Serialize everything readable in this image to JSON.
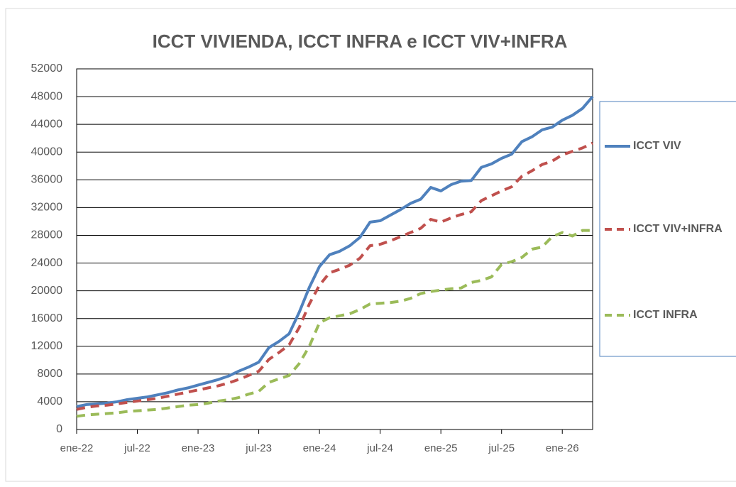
{
  "chart_data": {
    "type": "line",
    "title": "ICCT VIVIENDA, ICCT INFRA e ICCT VIV+INFRA",
    "categories": [
      "ene-22",
      null,
      null,
      null,
      null,
      null,
      "jul-22",
      null,
      null,
      null,
      null,
      null,
      "ene-23",
      null,
      null,
      null,
      null,
      null,
      "jul-23",
      null,
      null,
      null,
      null,
      null,
      "ene-24",
      null,
      null,
      null,
      null,
      null,
      "jul-24",
      null,
      null,
      null,
      null,
      null,
      "ene-25",
      null,
      null,
      null,
      null,
      null,
      "jul-25",
      null,
      null,
      null,
      null,
      null,
      "ene-26",
      null,
      null,
      null
    ],
    "series": [
      {
        "name": "ICCT VIV",
        "color": "#4f81bd",
        "dashed": false,
        "values": [
          3300,
          3600,
          3700,
          3800,
          4000,
          4300,
          4500,
          4700,
          5000,
          5300,
          5700,
          6000,
          6400,
          6800,
          7200,
          7700,
          8400,
          9000,
          9700,
          11800,
          12700,
          13800,
          16900,
          20500,
          23500,
          25200,
          25700,
          26500,
          27700,
          29900,
          30100,
          30900,
          31700,
          32600,
          33200,
          34900,
          34400,
          35300,
          35800,
          35900,
          37800,
          38300,
          39100,
          39700,
          41500,
          42200,
          43200,
          43600,
          44600,
          45300,
          46300,
          48000
        ]
      },
      {
        "name": "ICCT VIV+INFRA",
        "color": "#c0504d",
        "dashed": true,
        "values": [
          2900,
          3200,
          3400,
          3500,
          3700,
          3900,
          4100,
          4300,
          4500,
          4800,
          5100,
          5400,
          5700,
          6000,
          6300,
          6700,
          7200,
          7800,
          8400,
          10100,
          11100,
          12200,
          14700,
          18100,
          20800,
          22600,
          23100,
          23700,
          24700,
          26500,
          26700,
          27200,
          27800,
          28400,
          29000,
          30300,
          29900,
          30500,
          31000,
          31400,
          33000,
          33700,
          34400,
          35000,
          36500,
          37300,
          38200,
          38700,
          39600,
          40100,
          40600,
          41300
        ]
      },
      {
        "name": "ICCT INFRA",
        "color": "#9bbb59",
        "dashed": true,
        "values": [
          1900,
          2100,
          2200,
          2300,
          2400,
          2600,
          2700,
          2800,
          2900,
          3100,
          3300,
          3500,
          3600,
          3800,
          4100,
          4300,
          4600,
          5100,
          5500,
          6800,
          7300,
          7800,
          9500,
          12000,
          15400,
          16100,
          16400,
          16700,
          17300,
          18100,
          18200,
          18300,
          18500,
          18900,
          19600,
          19900,
          20100,
          20300,
          20400,
          21200,
          21500,
          22000,
          23800,
          24200,
          24800,
          26000,
          26300,
          27800,
          28400,
          27900,
          28700,
          28700
        ]
      }
    ],
    "ylim": [
      0,
      52000
    ],
    "yticks": [
      0,
      4000,
      8000,
      12000,
      16000,
      20000,
      24000,
      28000,
      32000,
      36000,
      40000,
      44000,
      48000,
      52000
    ],
    "grid": true,
    "legend": "right"
  }
}
